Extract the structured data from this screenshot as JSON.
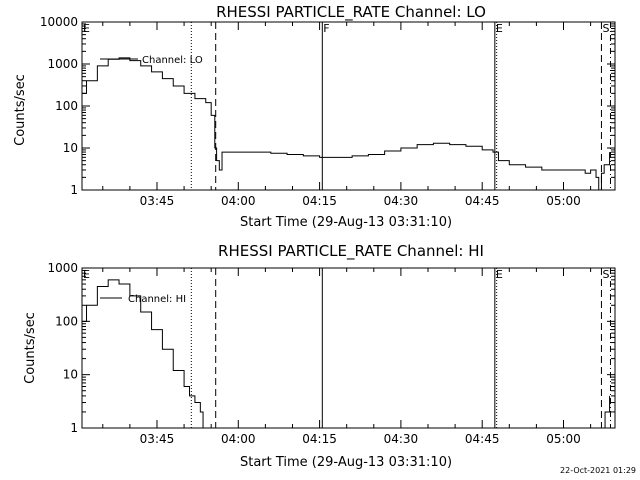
{
  "chart_data": [
    {
      "type": "line",
      "title": "RHESSI PARTICLE_RATE Channel: LO",
      "xlabel": "Start Time (29-Aug-13 03:31:10)",
      "ylabel": "Counts/sec",
      "yscale": "log",
      "ylim": [
        1,
        10000
      ],
      "xlim": [
        "03:31:10",
        "05:09:30"
      ],
      "yticks": [
        "1",
        "10",
        "100",
        "1000",
        "10000"
      ],
      "xticks": [
        "03:45",
        "04:00",
        "04:15",
        "04:30",
        "04:45",
        "05:00"
      ],
      "legend": "Channel: LO",
      "event_markers": [
        {
          "label": "E",
          "time": "03:31:10",
          "style": "none"
        },
        {
          "label": "",
          "time": "03:51:20",
          "style": "dotted"
        },
        {
          "label": "",
          "time": "03:55:50",
          "style": "dashed"
        },
        {
          "label": "F",
          "time": "04:15:30",
          "style": "solid"
        },
        {
          "label": "E",
          "time": "04:47:20",
          "style": "solid"
        },
        {
          "label": "",
          "time": "04:47:40",
          "style": "dotted"
        },
        {
          "label": "S",
          "time": "05:07:00",
          "style": "dashed"
        },
        {
          "label": "",
          "time": "05:08:40",
          "style": "dashdot"
        }
      ],
      "series": [
        {
          "name": "Channel: LO",
          "x": [
            "03:31:10",
            "03:32:00",
            "03:34:00",
            "03:36:00",
            "03:38:00",
            "03:40:00",
            "03:42:00",
            "03:44:00",
            "03:46:00",
            "03:48:00",
            "03:50:00",
            "03:52:00",
            "03:54:00",
            "03:55:00",
            "03:55:40",
            "03:56:00",
            "03:56:30",
            "03:57:00",
            "03:58:00",
            "04:00:00",
            "04:03:00",
            "04:06:00",
            "04:09:00",
            "04:12:00",
            "04:15:00",
            "04:18:00",
            "04:21:00",
            "04:24:00",
            "04:27:00",
            "04:30:00",
            "04:33:00",
            "04:36:00",
            "04:39:00",
            "04:42:00",
            "04:45:00",
            "04:47:00",
            "04:48:00",
            "04:50:00",
            "04:53:00",
            "04:56:00",
            "04:59:00",
            "05:02:00",
            "05:04:00",
            "05:05:00",
            "05:06:00",
            "05:06:30",
            "05:07:00",
            "05:07:30",
            "05:08:30"
          ],
          "y": [
            200,
            400,
            900,
            1300,
            1400,
            1200,
            900,
            650,
            450,
            300,
            200,
            150,
            120,
            60,
            10,
            5,
            3,
            8,
            8,
            8,
            8,
            7.5,
            7,
            6.5,
            6,
            6,
            6.5,
            7,
            8.5,
            10,
            12,
            13,
            12,
            11,
            9,
            8,
            5,
            4,
            3.5,
            3,
            3,
            3,
            2.5,
            3,
            2,
            1,
            2.5,
            4,
            8
          ]
        }
      ]
    },
    {
      "type": "line",
      "title": "RHESSI PARTICLE_RATE Channel: HI",
      "xlabel": "Start Time (29-Aug-13 03:31:10)",
      "ylabel": "Counts/sec",
      "yscale": "log",
      "ylim": [
        1,
        1000
      ],
      "xlim": [
        "03:31:10",
        "05:09:30"
      ],
      "yticks": [
        "1",
        "10",
        "100",
        "1000"
      ],
      "xticks": [
        "03:45",
        "04:00",
        "04:15",
        "04:30",
        "04:45",
        "05:00"
      ],
      "legend": "Channel: HI",
      "event_markers": [
        {
          "label": "E",
          "time": "03:31:10",
          "style": "none"
        },
        {
          "label": "",
          "time": "03:51:20",
          "style": "dotted"
        },
        {
          "label": "",
          "time": "03:55:50",
          "style": "dashed"
        },
        {
          "label": "",
          "time": "04:15:30",
          "style": "solid"
        },
        {
          "label": "E",
          "time": "04:47:20",
          "style": "solid"
        },
        {
          "label": "",
          "time": "04:47:40",
          "style": "dotted"
        },
        {
          "label": "S",
          "time": "05:07:00",
          "style": "dashed"
        },
        {
          "label": "",
          "time": "05:08:40",
          "style": "dashdot"
        }
      ],
      "series": [
        {
          "name": "Channel: HI",
          "x": [
            "03:31:10",
            "03:32:00",
            "03:34:00",
            "03:36:00",
            "03:38:00",
            "03:40:00",
            "03:42:00",
            "03:44:00",
            "03:46:00",
            "03:48:00",
            "03:50:00",
            "03:51:00",
            "03:52:00",
            "03:53:00",
            "03:53:30"
          ],
          "y": [
            100,
            200,
            450,
            600,
            500,
            300,
            150,
            70,
            30,
            12,
            6,
            4,
            3,
            2,
            1
          ]
        },
        {
          "name": "",
          "x": [
            "05:07:00",
            "05:07:40",
            "05:08:30"
          ],
          "y": [
            1,
            2,
            4
          ]
        }
      ]
    }
  ],
  "timestamp": "22-Oct-2021 01:29"
}
